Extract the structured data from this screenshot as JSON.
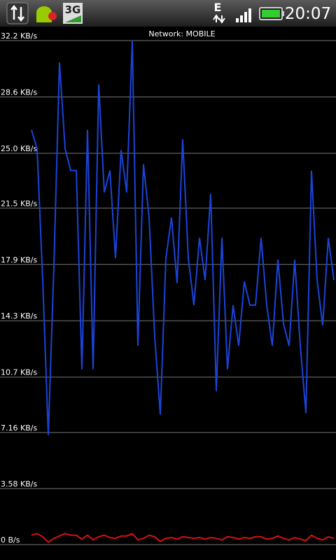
{
  "status_bar": {
    "network": "3G",
    "data": "E",
    "time": "20:07"
  },
  "chart_data": {
    "type": "line",
    "title": "Network: MOBILE",
    "ylim": [
      0,
      32.2
    ],
    "yticks": [
      {
        "value": 0,
        "label": "0 B/s"
      },
      {
        "value": 3.58,
        "label": "3.58 KB/s"
      },
      {
        "value": 7.16,
        "label": "7.16 KB/s"
      },
      {
        "value": 10.7,
        "label": "10.7 KB/s"
      },
      {
        "value": 14.3,
        "label": "14.3 KB/s"
      },
      {
        "value": 17.9,
        "label": "17.9 KB/s"
      },
      {
        "value": 21.5,
        "label": "21.5 KB/s"
      },
      {
        "value": 25.0,
        "label": "25.0 KB/s"
      },
      {
        "value": 28.6,
        "label": "28.6 KB/s"
      },
      {
        "value": 32.2,
        "label": "32.2 KB/s"
      }
    ],
    "grid": true,
    "series": [
      {
        "color": "#1a44d8",
        "values": [
          26.5,
          25.3,
          16.9,
          7.0,
          17.8,
          30.8,
          25.3,
          23.9,
          23.9,
          11.2,
          26.5,
          11.2,
          29.4,
          22.5,
          23.9,
          18.3,
          25.2,
          22.5,
          32.2,
          12.7,
          24.3,
          20.9,
          13.3,
          8.3,
          18.3,
          20.9,
          16.7,
          25.9,
          18.3,
          15.3,
          19.6,
          16.9,
          22.4,
          9.8,
          19.6,
          11.2,
          15.3,
          12.7,
          16.8,
          15.3,
          15.3,
          19.6,
          15.3,
          12.7,
          18.2,
          14.1,
          12.7,
          18.2,
          12.7,
          8.4,
          23.9,
          16.9,
          14.0,
          19.6,
          16.9
        ]
      },
      {
        "color": "#d81010",
        "values": [
          0.6,
          0.7,
          0.5,
          0.15,
          0.4,
          0.55,
          0.7,
          0.6,
          0.6,
          0.35,
          0.6,
          0.3,
          0.5,
          0.6,
          0.45,
          0.4,
          0.55,
          0.55,
          0.7,
          0.3,
          0.4,
          0.6,
          0.5,
          0.2,
          0.4,
          0.45,
          0.35,
          0.5,
          0.45,
          0.4,
          0.45,
          0.35,
          0.45,
          0.4,
          0.3,
          0.5,
          0.45,
          0.35,
          0.45,
          0.4,
          0.5,
          0.5,
          0.35,
          0.4,
          0.55,
          0.4,
          0.3,
          0.45,
          0.35,
          0.25,
          0.6,
          0.4,
          0.3,
          0.5,
          0.4
        ]
      }
    ]
  }
}
